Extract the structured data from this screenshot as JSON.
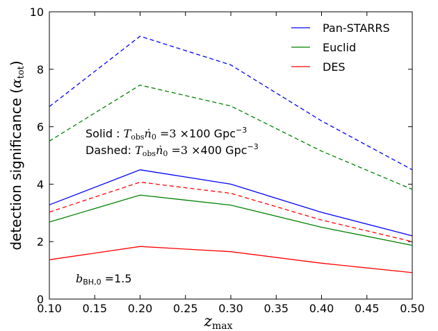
{
  "chart_data": {
    "type": "line",
    "x": [
      0.1,
      0.2,
      0.3,
      0.4,
      0.5
    ],
    "xlim": [
      0.1,
      0.5
    ],
    "ylim": [
      0,
      10
    ],
    "x_ticks": [
      "0.10",
      "0.15",
      "0.20",
      "0.25",
      "0.30",
      "0.35",
      "0.40",
      "0.45",
      "0.50"
    ],
    "y_ticks": [
      "0",
      "2",
      "4",
      "6",
      "8",
      "10"
    ],
    "xlabel_base": "z",
    "xlabel_sub": "max",
    "ylabel_text": "detection significance (",
    "ylabel_sym": "α",
    "ylabel_sub": "tot",
    "ylabel_close": ")",
    "legend_position": "top-right",
    "grid": false,
    "legend": [
      {
        "name": "Pan-STARRS",
        "color": "#0000ff"
      },
      {
        "name": "Euclid",
        "color": "#008000"
      },
      {
        "name": "DES",
        "color": "#ff0000"
      }
    ],
    "series": [
      {
        "name": "Pan-STARRS",
        "style": "solid",
        "color": "#0000ff",
        "values": [
          3.28,
          4.5,
          4.0,
          3.02,
          2.2
        ]
      },
      {
        "name": "Euclid",
        "style": "solid",
        "color": "#008000",
        "values": [
          2.68,
          3.62,
          3.27,
          2.5,
          1.87
        ]
      },
      {
        "name": "DES",
        "style": "solid",
        "color": "#ff0000",
        "values": [
          1.37,
          1.83,
          1.65,
          1.25,
          0.92
        ]
      },
      {
        "name": "Pan-STARRS",
        "style": "dashed",
        "color": "#0000ff",
        "values": [
          6.7,
          9.15,
          8.15,
          6.2,
          4.5
        ]
      },
      {
        "name": "Euclid",
        "style": "dashed",
        "color": "#008000",
        "values": [
          5.5,
          7.45,
          6.72,
          5.15,
          3.82
        ]
      },
      {
        "name": "DES",
        "style": "dashed",
        "color": "#ff0000",
        "values": [
          3.03,
          4.07,
          3.68,
          2.75,
          2.0
        ]
      }
    ],
    "annotations": {
      "solid_prefix": "Solid : ",
      "dashed_prefix": "Dashed: ",
      "T": "T",
      "T_sub": "obs",
      "n": "ṅ",
      "n_sub": "0",
      "eq": " =3",
      "times": " ×",
      "solid_value": "100",
      "dashed_value": "400",
      "unit": " Gpc",
      "unit_exp": "−3",
      "bias_sym": "b",
      "bias_sub": "BH,0",
      "bias_val": " =1.5"
    }
  }
}
